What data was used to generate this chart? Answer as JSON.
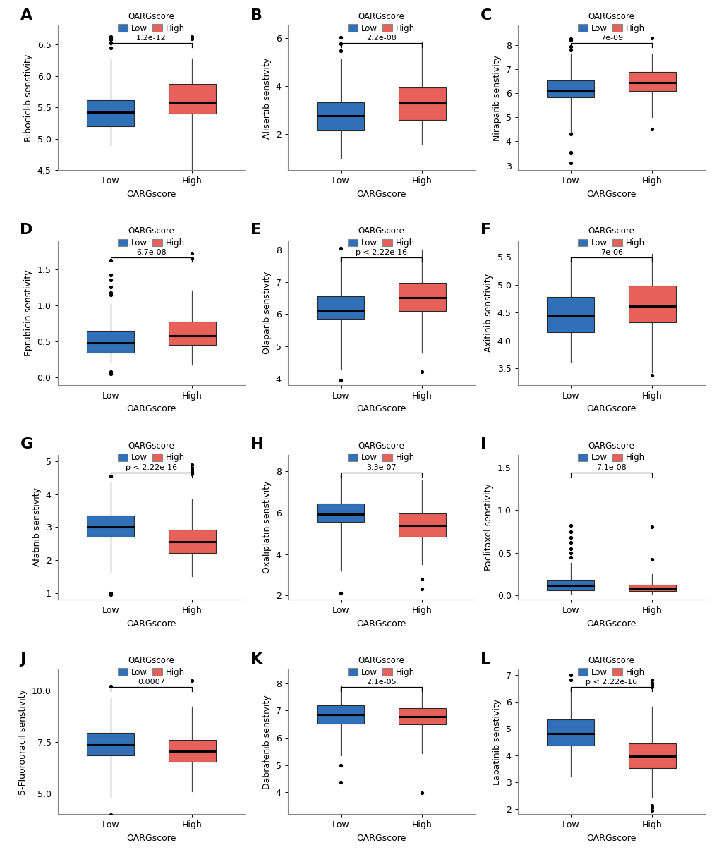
{
  "panels": [
    {
      "label": "A",
      "ylabel": "Ribociclib senstivity",
      "pvalue": "1.2e-12",
      "ylim": [
        4.5,
        6.8
      ],
      "yticks": [
        4.5,
        5.0,
        5.5,
        6.0,
        6.5
      ],
      "low": {
        "whislo": 4.9,
        "q1": 5.2,
        "med": 5.42,
        "q3": 5.62,
        "whishi": 6.28,
        "fliers": [
          6.45,
          6.52,
          6.58,
          6.61,
          6.62
        ]
      },
      "high": {
        "whislo": 4.35,
        "q1": 5.4,
        "med": 5.58,
        "q3": 5.87,
        "whishi": 6.28,
        "fliers": [
          6.59,
          6.62
        ]
      }
    },
    {
      "label": "B",
      "ylabel": "Alisertib senstivity",
      "pvalue": "2.2e-08",
      "ylim": [
        0.5,
        6.5
      ],
      "yticks": [
        2,
        4,
        6
      ],
      "low": {
        "whislo": 1.0,
        "q1": 2.15,
        "med": 2.78,
        "q3": 3.32,
        "whishi": 5.1,
        "fliers": [
          5.45,
          5.75,
          6.02
        ]
      },
      "high": {
        "whislo": 1.6,
        "q1": 2.58,
        "med": 3.28,
        "q3": 3.95,
        "whishi": 5.8,
        "fliers": []
      }
    },
    {
      "label": "C",
      "ylabel": "Niraparib senstivity",
      "pvalue": "7e-09",
      "ylim": [
        2.8,
        8.8
      ],
      "yticks": [
        3,
        4,
        5,
        6,
        7,
        8
      ],
      "low": {
        "whislo": 4.3,
        "q1": 5.82,
        "med": 6.1,
        "q3": 6.52,
        "whishi": 7.65,
        "fliers": [
          7.78,
          7.93,
          8.2,
          8.25,
          3.1,
          3.5,
          3.55,
          4.3
        ]
      },
      "high": {
        "whislo": 5.0,
        "q1": 6.08,
        "med": 6.45,
        "q3": 6.88,
        "whishi": 7.6,
        "fliers": [
          8.3,
          4.5
        ]
      }
    },
    {
      "label": "D",
      "ylabel": "Eprubicin senstivity",
      "pvalue": "6.7e-08",
      "ylim": [
        -0.1,
        1.9
      ],
      "yticks": [
        0.0,
        0.5,
        1.0,
        1.5
      ],
      "low": {
        "whislo": 0.22,
        "q1": 0.35,
        "med": 0.48,
        "q3": 0.65,
        "whishi": 1.02,
        "fliers": [
          1.62,
          1.18,
          0.08,
          0.05,
          1.15,
          1.25,
          1.35,
          1.42
        ]
      },
      "high": {
        "whislo": 0.18,
        "q1": 0.45,
        "med": 0.58,
        "q3": 0.78,
        "whishi": 1.2,
        "fliers": [
          1.65,
          1.72
        ]
      }
    },
    {
      "label": "E",
      "ylabel": "Olaparib senstivity",
      "pvalue": "p < 2.22e-16",
      "ylim": [
        3.8,
        8.3
      ],
      "yticks": [
        4,
        5,
        6,
        7,
        8
      ],
      "low": {
        "whislo": 4.3,
        "q1": 5.85,
        "med": 6.12,
        "q3": 6.55,
        "whishi": 7.8,
        "fliers": [
          3.95,
          8.05
        ]
      },
      "high": {
        "whislo": 4.8,
        "q1": 6.1,
        "med": 6.52,
        "q3": 6.98,
        "whishi": 8.0,
        "fliers": [
          4.2
        ]
      }
    },
    {
      "label": "F",
      "ylabel": "Axitinib senstivity",
      "pvalue": "7e-06",
      "ylim": [
        3.2,
        5.8
      ],
      "yticks": [
        3.5,
        4.0,
        4.5,
        5.0,
        5.5
      ],
      "low": {
        "whislo": 3.62,
        "q1": 4.15,
        "med": 4.45,
        "q3": 4.78,
        "whishi": 5.45,
        "fliers": []
      },
      "high": {
        "whislo": 3.42,
        "q1": 4.32,
        "med": 4.62,
        "q3": 4.98,
        "whishi": 5.55,
        "fliers": [
          3.38
        ]
      }
    },
    {
      "label": "G",
      "ylabel": "Afatinib senstivity",
      "pvalue": "p < 2.22e-16",
      "ylim": [
        0.8,
        5.2
      ],
      "yticks": [
        1,
        2,
        3,
        4,
        5
      ],
      "low": {
        "whislo": 1.62,
        "q1": 2.72,
        "med": 3.0,
        "q3": 3.35,
        "whishi": 4.38,
        "fliers": [
          1.0,
          0.95,
          4.55
        ]
      },
      "high": {
        "whislo": 1.5,
        "q1": 2.22,
        "med": 2.55,
        "q3": 2.92,
        "whishi": 3.85,
        "fliers": [
          4.62,
          4.68,
          4.75,
          4.82,
          4.9
        ]
      }
    },
    {
      "label": "H",
      "ylabel": "Oxaliplatin senstivity",
      "pvalue": "3.3e-07",
      "ylim": [
        1.8,
        8.8
      ],
      "yticks": [
        2,
        4,
        6,
        8
      ],
      "low": {
        "whislo": 3.2,
        "q1": 5.55,
        "med": 5.92,
        "q3": 6.45,
        "whishi": 7.8,
        "fliers": [
          2.1
        ]
      },
      "high": {
        "whislo": 3.5,
        "q1": 4.85,
        "med": 5.38,
        "q3": 5.95,
        "whishi": 7.6,
        "fliers": [
          2.8,
          2.3
        ]
      }
    },
    {
      "label": "I",
      "ylabel": "Paclitaxel senstivity",
      "pvalue": "7.1e-08",
      "ylim": [
        -0.05,
        1.65
      ],
      "yticks": [
        0.0,
        0.5,
        1.0,
        1.5
      ],
      "low": {
        "whislo": 0.02,
        "q1": 0.06,
        "med": 0.115,
        "q3": 0.18,
        "whishi": 0.38,
        "fliers": [
          0.45,
          0.5,
          0.55,
          0.62,
          0.68,
          0.75,
          0.82
        ]
      },
      "high": {
        "whislo": 0.02,
        "q1": 0.05,
        "med": 0.085,
        "q3": 0.125,
        "whishi": 0.25,
        "fliers": [
          0.42,
          0.8
        ]
      }
    },
    {
      "label": "J",
      "ylabel": "5-Fluorouracil senstivity",
      "pvalue": "0.0007",
      "ylim": [
        4.0,
        11.0
      ],
      "yticks": [
        5.0,
        7.5,
        10.0
      ],
      "low": {
        "whislo": 4.8,
        "q1": 6.85,
        "med": 7.35,
        "q3": 7.92,
        "whishi": 9.6,
        "fliers": [
          3.98,
          10.2
        ]
      },
      "high": {
        "whislo": 5.1,
        "q1": 6.52,
        "med": 7.05,
        "q3": 7.6,
        "whishi": 9.2,
        "fliers": [
          10.45
        ]
      }
    },
    {
      "label": "K",
      "ylabel": "Dabrafenib senstivity",
      "pvalue": "2.1e-05",
      "ylim": [
        3.2,
        8.5
      ],
      "yticks": [
        4,
        5,
        6,
        7,
        8
      ],
      "low": {
        "whislo": 5.35,
        "q1": 6.52,
        "med": 6.85,
        "q3": 7.18,
        "whishi": 7.92,
        "fliers": [
          4.38,
          5.0
        ]
      },
      "high": {
        "whislo": 5.42,
        "q1": 6.48,
        "med": 6.78,
        "q3": 7.08,
        "whishi": 7.85,
        "fliers": [
          3.98
        ]
      }
    },
    {
      "label": "L",
      "ylabel": "Lapatinib senstivity",
      "pvalue": "p < 2.22e-16",
      "ylim": [
        1.8,
        7.2
      ],
      "yticks": [
        2,
        3,
        4,
        5,
        6,
        7
      ],
      "low": {
        "whislo": 3.2,
        "q1": 4.35,
        "med": 4.82,
        "q3": 5.35,
        "whishi": 6.52,
        "fliers": [
          7.0,
          6.8
        ]
      },
      "high": {
        "whislo": 2.45,
        "q1": 3.52,
        "med": 3.98,
        "q3": 4.45,
        "whishi": 5.8,
        "fliers": [
          6.55,
          6.65,
          6.72,
          6.82,
          1.95,
          2.05,
          2.12
        ]
      }
    }
  ],
  "low_color": "#3070B8",
  "high_color": "#E8605A",
  "bg_color": "#FFFFFF",
  "xlabel": "OARGscore",
  "legend_title": "OARGscore",
  "medianline_color": "#000000"
}
